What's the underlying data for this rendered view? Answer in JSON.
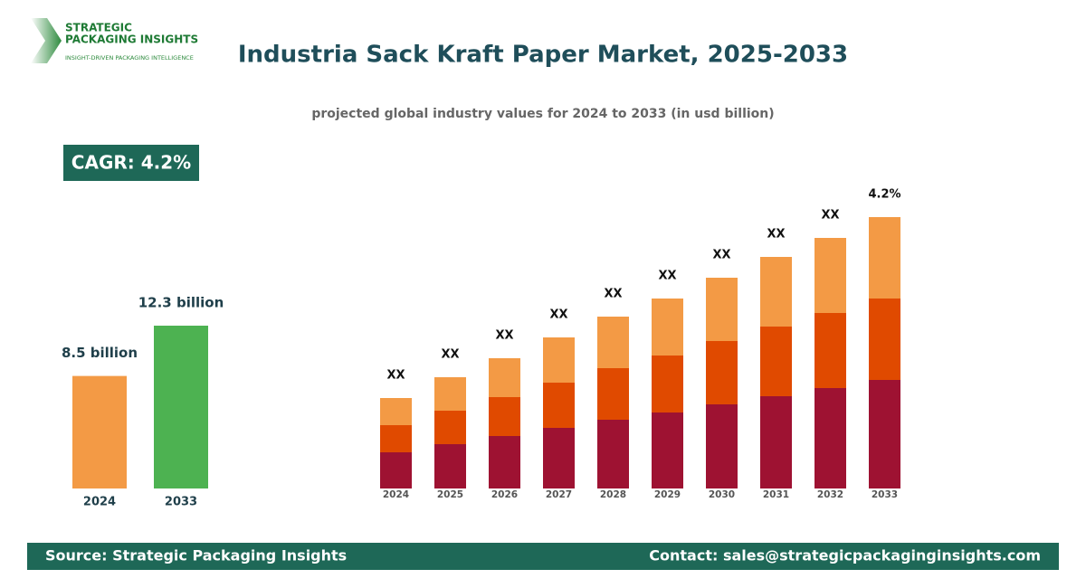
{
  "header": {
    "logo_line1": "STRATEGIC",
    "logo_line2": "PACKAGING INSIGHTS",
    "logo_tagline": "INSIGHT-DRIVEN PACKAGING INTELLIGENCE",
    "title": "Industria Sack Kraft Paper Market, 2025-2033",
    "subtitle": "projected global industry values for 2024 to 2033 (in usd billion)"
  },
  "cagr": "CAGR: 4.2%",
  "chart_data": [
    {
      "type": "bar",
      "categories": [
        "2024",
        "2033"
      ],
      "values": [
        8.5,
        12.3
      ],
      "value_labels": [
        "8.5 billion",
        "12.3 billion"
      ],
      "colors": [
        "#f39a45",
        "#4db251"
      ]
    },
    {
      "type": "stacked_bar",
      "categories": [
        "2024",
        "2025",
        "2026",
        "2027",
        "2028",
        "2029",
        "2030",
        "2031",
        "2032",
        "2033"
      ],
      "series": [
        {
          "color": "#9e1232",
          "values": [
            40,
            49,
            58,
            67,
            76,
            84,
            93,
            102,
            111,
            120
          ]
        },
        {
          "color": "#e04a00",
          "values": [
            30,
            37,
            43,
            50,
            57,
            63,
            70,
            77,
            83,
            90
          ]
        },
        {
          "color": "#f39a45",
          "values": [
            30,
            37,
            43,
            50,
            57,
            63,
            70,
            77,
            83,
            90
          ]
        }
      ],
      "top_labels": [
        "XX",
        "XX",
        "XX",
        "XX",
        "XX",
        "XX",
        "XX",
        "XX",
        "XX",
        "4.2%"
      ]
    }
  ],
  "footer": {
    "source": "Source: Strategic Packaging Insights",
    "contact": "Contact: sales@strategicpackaginginsights.com"
  }
}
